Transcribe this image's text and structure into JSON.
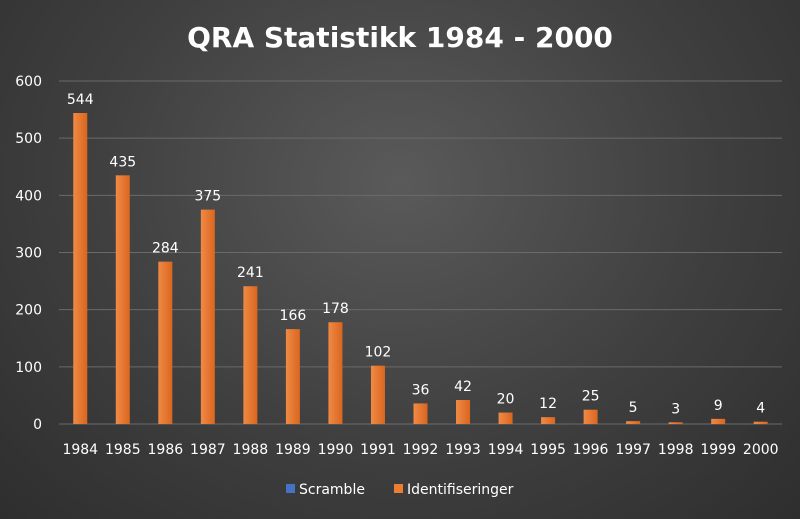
{
  "chart_data": {
    "type": "bar",
    "title": "QRA Statistikk 1984 - 2000",
    "xlabel": "",
    "ylabel": "",
    "ylim": [
      0,
      600
    ],
    "yticks": [
      0,
      100,
      200,
      300,
      400,
      500,
      600
    ],
    "grid": true,
    "legend_position": "bottom",
    "categories": [
      "1984",
      "1985",
      "1986",
      "1987",
      "1988",
      "1989",
      "1990",
      "1991",
      "1992",
      "1993",
      "1994",
      "1995",
      "1996",
      "1997",
      "1998",
      "1999",
      "2000"
    ],
    "series": [
      {
        "name": "Scramble",
        "color": "#4472c4",
        "values": [
          0,
          0,
          0,
          0,
          0,
          0,
          0,
          0,
          0,
          0,
          0,
          0,
          0,
          0,
          0,
          0,
          0
        ]
      },
      {
        "name": "Identifiseringer",
        "color": "#ed7d31",
        "values": [
          544,
          435,
          284,
          375,
          241,
          166,
          178,
          102,
          36,
          42,
          20,
          12,
          25,
          5,
          3,
          9,
          4
        ]
      }
    ],
    "data_labels_series": "Identifiseringer"
  }
}
